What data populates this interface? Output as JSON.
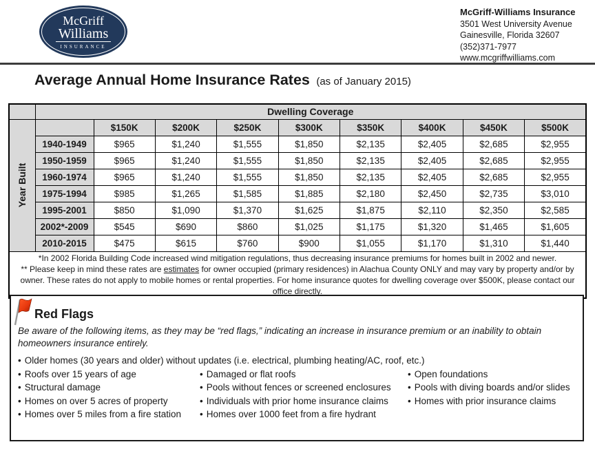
{
  "header": {
    "logo": {
      "line1": "McGriff",
      "line2": "Williams",
      "line3": "INSURANCE"
    },
    "contact": {
      "name": "McGriff-Williams Insurance",
      "address1": "3501 West University Avenue",
      "address2": "Gainesville, Florida 32607",
      "phone": "(352)371-7977",
      "website": "www.mcgriffwilliams.com"
    }
  },
  "title": {
    "main": "Average Annual Home Insurance Rates",
    "suffix": "(as of January 2015)"
  },
  "rate_table": {
    "group_header": "Dwelling Coverage",
    "row_axis_label": "Year Built",
    "columns": [
      "$150K",
      "$200K",
      "$250K",
      "$300K",
      "$350K",
      "$400K",
      "$450K",
      "$500K"
    ],
    "rows": [
      {
        "year": "1940-1949",
        "values": [
          "$965",
          "$1,240",
          "$1,555",
          "$1,850",
          "$2,135",
          "$2,405",
          "$2,685",
          "$2,955"
        ]
      },
      {
        "year": "1950-1959",
        "values": [
          "$965",
          "$1,240",
          "$1,555",
          "$1,850",
          "$2,135",
          "$2,405",
          "$2,685",
          "$2,955"
        ]
      },
      {
        "year": "1960-1974",
        "values": [
          "$965",
          "$1,240",
          "$1,555",
          "$1,850",
          "$2,135",
          "$2,405",
          "$2,685",
          "$2,955"
        ]
      },
      {
        "year": "1975-1994",
        "values": [
          "$985",
          "$1,265",
          "$1,585",
          "$1,885",
          "$2,180",
          "$2,450",
          "$2,735",
          "$3,010"
        ]
      },
      {
        "year": "1995-2001",
        "values": [
          "$850",
          "$1,090",
          "$1,370",
          "$1,625",
          "$1,875",
          "$2,110",
          "$2,350",
          "$2,585"
        ]
      },
      {
        "year": "2002*-2009",
        "values": [
          "$545",
          "$690",
          "$860",
          "$1,025",
          "$1,175",
          "$1,320",
          "$1,465",
          "$1,605"
        ]
      },
      {
        "year": "2010-2015",
        "values": [
          "$475",
          "$615",
          "$760",
          "$900",
          "$1,055",
          "$1,170",
          "$1,310",
          "$1,440"
        ]
      }
    ],
    "footnotes": {
      "note1": "*In 2002 Florida Building Code increased wind mitigation regulations, thus decreasing insurance premiums for homes built in 2002 and newer.",
      "note2_pre": "** Please keep in mind these rates are ",
      "note2_underlined": "estimates",
      "note2_post": " for owner occupied (primary residences) in Alachua County ONLY and may vary by property and/or by owner. These rates do not apply to mobile homes or rental properties. For home insurance quotes for dwelling coverage over $500K, please contact our office directly."
    }
  },
  "red_flags": {
    "heading": "Red Flags",
    "intro": "Be aware of the following items, as they may be “red flags,” indicating an increase in insurance premium or an inability to obtain homeowners insurance entirely.",
    "bullet_char": "•",
    "full_width_item": "Older homes (30 years and older) without updates (i.e. electrical, plumbing heating/AC, roof, etc.)",
    "columns": [
      {
        "items": [
          "Roofs over 15 years of age",
          "Structural damage",
          "Homes on over 5 acres of property",
          "Homes over 5 miles from a fire station"
        ]
      },
      {
        "items": [
          "Damaged or flat roofs",
          "Pools without fences or screened enclosures",
          "Individuals with prior home insurance claims",
          "Homes over 1000 feet from a fire hydrant"
        ]
      },
      {
        "items": [
          "Open foundations",
          "Pools with diving boards and/or slides",
          "Homes with prior insurance claims"
        ]
      }
    ]
  },
  "colors": {
    "navy": "#22395b",
    "table_header_gray": "#d9d9d9",
    "flag_red": "#e8390e",
    "rule_gray": "#3c3c3c"
  }
}
